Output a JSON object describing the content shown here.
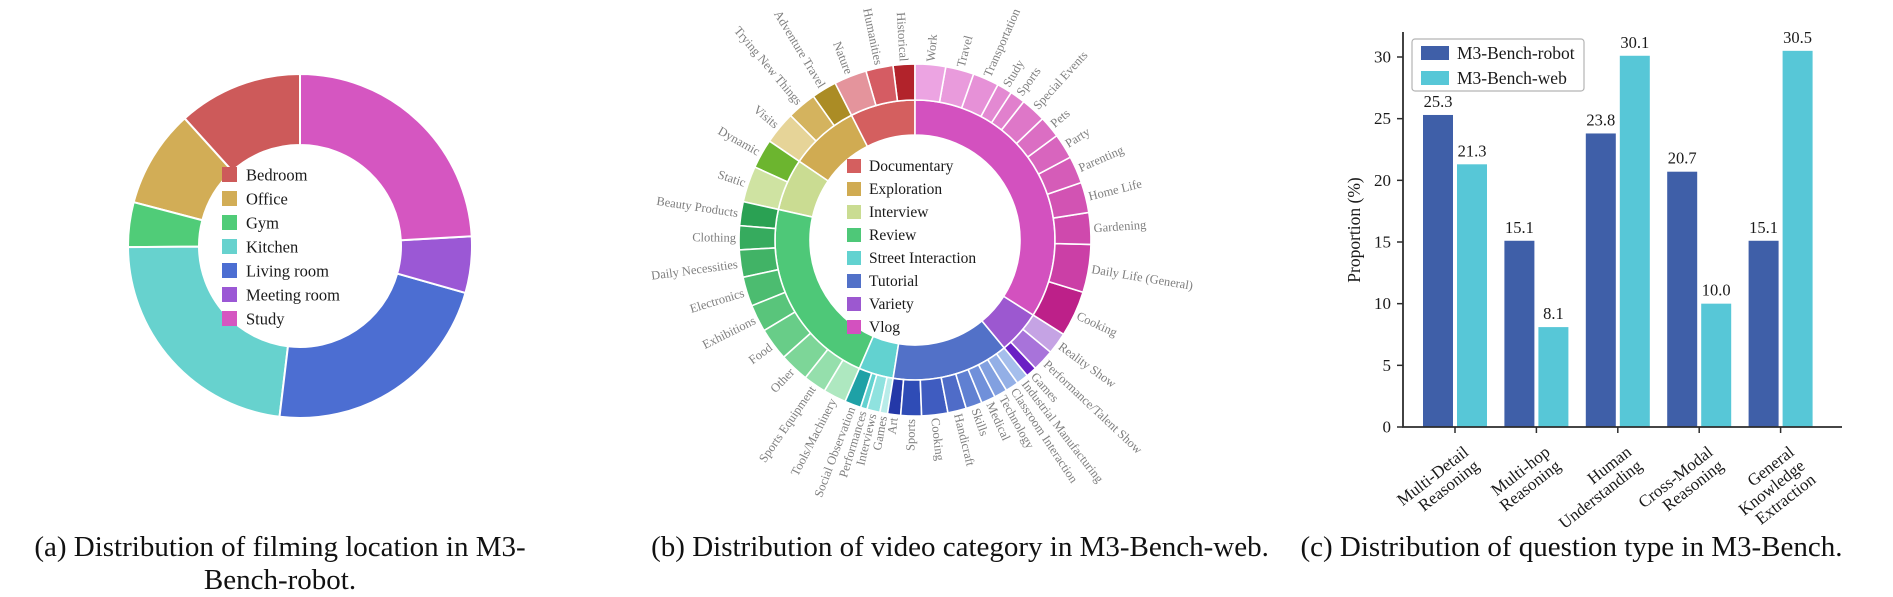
{
  "chart_data": [
    {
      "type": "pie",
      "panel": "a",
      "caption": "(a) Distribution of filming location in M3-Bench-robot.",
      "donut": true,
      "legend_position": "center",
      "segments": [
        {
          "label": "Bedroom",
          "value": 11.7,
          "color": "#cd5a5a"
        },
        {
          "label": "Office",
          "value": 9.2,
          "color": "#d2ad56"
        },
        {
          "label": "Gym",
          "value": 4.2,
          "color": "#50cc78"
        },
        {
          "label": "Kitchen",
          "value": 23.0,
          "color": "#67d2ce"
        },
        {
          "label": "Living room",
          "value": 22.5,
          "color": "#4c6ed2"
        },
        {
          "label": "Meeting room",
          "value": 5.3,
          "color": "#9b58d5"
        },
        {
          "label": "Study",
          "value": 24.1,
          "color": "#d556c1"
        }
      ]
    },
    {
      "type": "sunburst",
      "panel": "b",
      "caption": "(b) Distribution of video category in M3-Bench-web.",
      "legend_position": "center",
      "categories": [
        {
          "label": "Documentary",
          "color": "#d45f5f",
          "children": [
            {
              "label": "Historical",
              "value": 2.0,
              "color": "#b2232b"
            },
            {
              "label": "Humanities",
              "value": 2.5,
              "color": "#d55c63"
            },
            {
              "label": "Nature",
              "value": 3.0,
              "color": "#e4949c"
            }
          ]
        },
        {
          "label": "Exploration",
          "color": "#d0ab52",
          "children": [
            {
              "label": "Adventure Travel",
              "value": 2.3,
              "color": "#ab8c25"
            },
            {
              "label": "Trying New Things",
              "value": 2.7,
              "color": "#d4b35e"
            },
            {
              "label": "Visits",
              "value": 3.0,
              "color": "#e6d498"
            }
          ]
        },
        {
          "label": "Interview",
          "color": "#cadc92",
          "children": [
            {
              "label": "Dynamic",
              "value": 2.7,
              "color": "#6cb52f"
            },
            {
              "label": "Static",
              "value": 3.3,
              "color": "#cfe3a2"
            }
          ]
        },
        {
          "label": "Review",
          "color": "#4ec878",
          "children": [
            {
              "label": "Beauty Products",
              "value": 2.2,
              "color": "#2aa153"
            },
            {
              "label": "Clothing",
              "value": 2.2,
              "color": "#36ab5e"
            },
            {
              "label": "Daily Necessities",
              "value": 2.5,
              "color": "#41b366"
            },
            {
              "label": "Electronics",
              "value": 2.7,
              "color": "#4cbc70"
            },
            {
              "label": "Exhibitions",
              "value": 2.5,
              "color": "#59c57b"
            },
            {
              "label": "Food",
              "value": 3.0,
              "color": "#68cd88"
            },
            {
              "label": "Other",
              "value": 2.7,
              "color": "#7dd698"
            },
            {
              "label": "Sports Equipment",
              "value": 2.1,
              "color": "#95dfac"
            },
            {
              "label": "Tools/Machinery",
              "value": 2.1,
              "color": "#aee8c0"
            }
          ]
        },
        {
          "label": "Street Interaction",
          "color": "#62d2d0",
          "children": [
            {
              "label": "Social Observation",
              "value": 1.5,
              "color": "#1ea1a6"
            },
            {
              "label": "Performances",
              "value": 0.6,
              "color": "#63d2d0"
            },
            {
              "label": "Interviews",
              "value": 1.2,
              "color": "#8fe2df"
            },
            {
              "label": "Games",
              "value": 0.7,
              "color": "#b8ece9"
            }
          ]
        },
        {
          "label": "Tutorial",
          "color": "#5271c8",
          "children": [
            {
              "label": "Art",
              "value": 1.2,
              "color": "#2438a8"
            },
            {
              "label": "Sports",
              "value": 1.9,
              "color": "#2f4cb6"
            },
            {
              "label": "Cooking",
              "value": 2.4,
              "color": "#3f5cc0"
            },
            {
              "label": "Handicraft",
              "value": 1.7,
              "color": "#4f6cc8"
            },
            {
              "label": "Skills",
              "value": 1.5,
              "color": "#6080d2"
            },
            {
              "label": "Medical",
              "value": 1.3,
              "color": "#7090da"
            },
            {
              "label": "Technology",
              "value": 1.2,
              "color": "#82a0e0"
            },
            {
              "label": "Classroom Interaction",
              "value": 1.2,
              "color": "#93afe6"
            },
            {
              "label": "Industrial Manufacturing",
              "value": 1.1,
              "color": "#a5beec"
            }
          ]
        },
        {
          "label": "Variety",
          "color": "#9c58d0",
          "children": [
            {
              "label": "Games",
              "value": 1.0,
              "color": "#6a1fc4"
            },
            {
              "label": "Performance/Talent Show",
              "value": 2.0,
              "color": "#a873da"
            },
            {
              "label": "Reality Show",
              "value": 2.0,
              "color": "#c5a3e4"
            }
          ]
        },
        {
          "label": "Vlog",
          "color": "#d351bf",
          "children": [
            {
              "label": "Cooking",
              "value": 4.2,
              "color": "#bd2089"
            },
            {
              "label": "Daily Life (General)",
              "value": 4.4,
              "color": "#cb3fa6"
            },
            {
              "label": "Gardening",
              "value": 2.9,
              "color": "#cf49ad"
            },
            {
              "label": "Home Life",
              "value": 2.8,
              "color": "#d253b3"
            },
            {
              "label": "Parenting",
              "value": 2.5,
              "color": "#d55cb8"
            },
            {
              "label": "Party",
              "value": 2.3,
              "color": "#d865be"
            },
            {
              "label": "Pets",
              "value": 2.0,
              "color": "#db6ec3"
            },
            {
              "label": "Special Events",
              "value": 2.3,
              "color": "#de77c8"
            },
            {
              "label": "Sports",
              "value": 1.4,
              "color": "#e180cd"
            },
            {
              "label": "Study",
              "value": 1.4,
              "color": "#e389d2"
            },
            {
              "label": "Transportation",
              "value": 2.4,
              "color": "#e691d7"
            },
            {
              "label": "Travel",
              "value": 2.6,
              "color": "#e99bdc"
            },
            {
              "label": "Work",
              "value": 2.8,
              "color": "#eca4e2"
            }
          ]
        }
      ]
    },
    {
      "type": "bar",
      "panel": "c",
      "caption": "(c) Distribution of question type in M3-Bench.",
      "ylabel": "Proportion (%)",
      "yticks": [
        0,
        5,
        10,
        15,
        20,
        25,
        30
      ],
      "ylim": [
        0,
        32
      ],
      "grid": false,
      "legend_position": "upper-left",
      "categories": [
        "Multi-Detail Reasoning",
        "Multi-hop Reasoning",
        "Human Understanding",
        "Cross-Modal Reasoning",
        "General Knowledge Extraction"
      ],
      "category_lines": [
        [
          "Multi-Detail",
          "Reasoning"
        ],
        [
          "Multi-hop",
          "Reasoning"
        ],
        [
          "Human",
          "Understanding"
        ],
        [
          "Cross-Modal",
          "Reasoning"
        ],
        [
          "General",
          "Knowledge",
          "Extraction"
        ]
      ],
      "series": [
        {
          "name": "M3-Bench-robot",
          "color": "#3f5fa8",
          "values": [
            25.3,
            15.1,
            23.8,
            20.7,
            15.1
          ]
        },
        {
          "name": "M3-Bench-web",
          "color": "#57c7d7",
          "values": [
            21.3,
            8.1,
            30.1,
            10.0,
            30.5
          ]
        }
      ]
    }
  ]
}
